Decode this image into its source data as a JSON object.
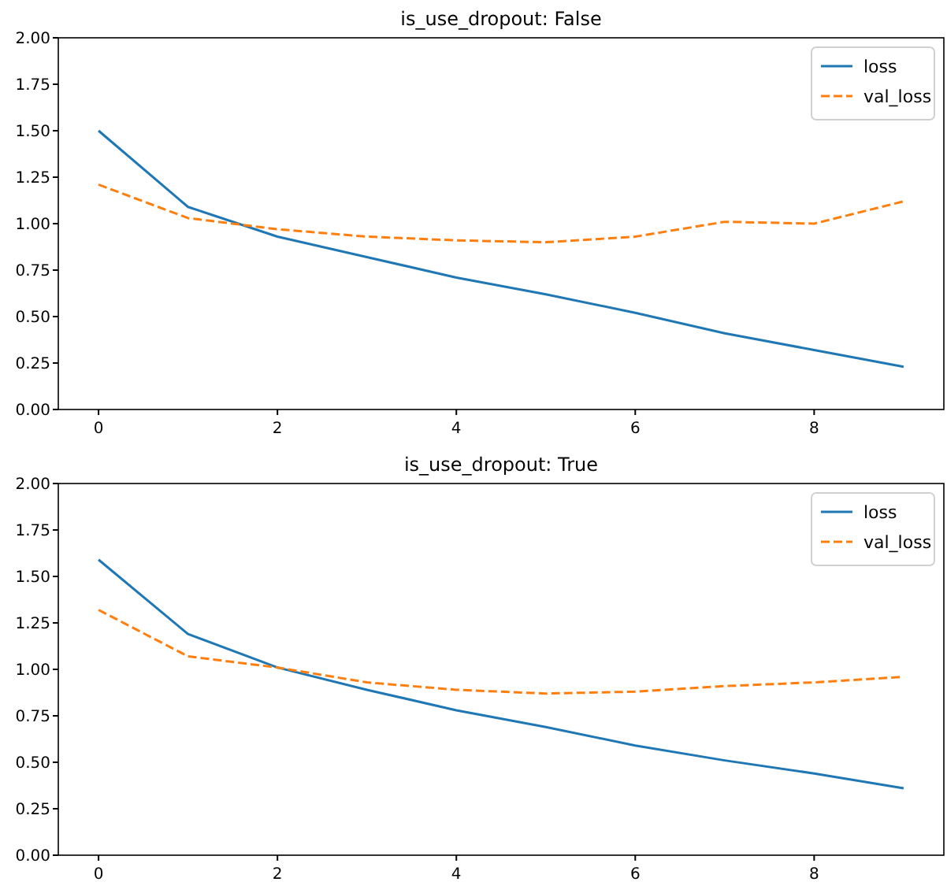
{
  "chart_data": [
    {
      "type": "line",
      "title": "is_use_dropout: False",
      "x": [
        0,
        1,
        2,
        3,
        4,
        5,
        6,
        7,
        8,
        9
      ],
      "xlim": [
        -0.45,
        9.45
      ],
      "xticks": [
        0,
        2,
        4,
        6,
        8
      ],
      "ylim": [
        0,
        2
      ],
      "yticks": [
        {
          "value": 0,
          "label": "0.00"
        },
        {
          "value": 0.25,
          "label": "0.25"
        },
        {
          "value": 0.5,
          "label": "0.50"
        },
        {
          "value": 0.75,
          "label": "0.75"
        },
        {
          "value": 1,
          "label": "1.00"
        },
        {
          "value": 1.25,
          "label": "1.25"
        },
        {
          "value": 1.5,
          "label": "1.50"
        },
        {
          "value": 1.75,
          "label": "1.75"
        },
        {
          "value": 2,
          "label": "2.00"
        }
      ],
      "legend": "top right",
      "series": [
        {
          "name": "loss",
          "color": "#1f77b4",
          "line_style": "solid",
          "values": [
            1.5,
            1.09,
            0.93,
            0.82,
            0.71,
            0.62,
            0.52,
            0.41,
            0.32,
            0.23
          ]
        },
        {
          "name": "val_loss",
          "color": "#ff7f0e",
          "line_style": "dashed",
          "values": [
            1.21,
            1.03,
            0.97,
            0.93,
            0.91,
            0.9,
            0.93,
            1.01,
            1.0,
            1.12
          ]
        }
      ]
    },
    {
      "type": "line",
      "title": "is_use_dropout: True",
      "x": [
        0,
        1,
        2,
        3,
        4,
        5,
        6,
        7,
        8,
        9
      ],
      "xlim": [
        -0.45,
        9.45
      ],
      "xticks": [
        0,
        2,
        4,
        6,
        8
      ],
      "ylim": [
        0,
        2
      ],
      "yticks": [
        {
          "value": 0,
          "label": "0.00"
        },
        {
          "value": 0.25,
          "label": "0.25"
        },
        {
          "value": 0.5,
          "label": "0.50"
        },
        {
          "value": 0.75,
          "label": "0.75"
        },
        {
          "value": 1,
          "label": "1.00"
        },
        {
          "value": 1.25,
          "label": "1.25"
        },
        {
          "value": 1.5,
          "label": "1.50"
        },
        {
          "value": 1.75,
          "label": "1.75"
        },
        {
          "value": 2,
          "label": "2.00"
        }
      ],
      "legend": "top right",
      "series": [
        {
          "name": "loss",
          "color": "#1f77b4",
          "line_style": "solid",
          "values": [
            1.59,
            1.19,
            1.01,
            0.89,
            0.78,
            0.69,
            0.59,
            0.51,
            0.44,
            0.36
          ]
        },
        {
          "name": "val_loss",
          "color": "#ff7f0e",
          "line_style": "dashed",
          "values": [
            1.32,
            1.07,
            1.01,
            0.93,
            0.89,
            0.87,
            0.88,
            0.91,
            0.93,
            0.96
          ]
        }
      ]
    }
  ]
}
